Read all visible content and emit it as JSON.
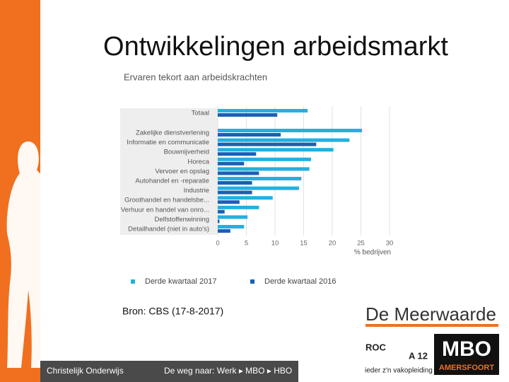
{
  "slide": {
    "title": "Ontwikkelingen arbeidsmarkt",
    "source": "Bron: CBS (17-8-2017)",
    "footer_left": "Christelijk Onderwijs",
    "footer_right": "De weg naar: Werk ▸ MBO ▸ HBO",
    "logo_meerwaarde": "De Meerwaarde",
    "logo_roc": "ROC",
    "logo_a12": "A 12",
    "logo_tagline": "ieder z'n vakopleiding",
    "logo_mbo": "MBO",
    "logo_city": "AMERSFOORT"
  },
  "chart_data": {
    "type": "hbar",
    "title": "Ervaren tekort aan arbeidskrachten",
    "x_label": "% bedrijven",
    "categories": [
      "Totaal",
      "Zakelijke dienstverlening",
      "Informatie en communicatie",
      "Bouwnijverheid",
      "Horeca",
      "Vervoer en opslag",
      "Autohandel en -reparatie",
      "Industrie",
      "Groothandel en handelsbe...",
      "Verhuur en handel van onro...",
      "Delfstoffenwinning",
      "Detailhandel (niet in auto's)"
    ],
    "series": [
      {
        "name": "Derde kwartaal 2017",
        "color": "#22b0e0",
        "values": [
          15.7,
          25.2,
          23,
          20.2,
          16.3,
          16,
          14.6,
          14.2,
          9.6,
          7.2,
          5.2,
          4.6
        ]
      },
      {
        "name": "Derde kwartaal 2016",
        "color": "#1b5fb5",
        "values": [
          10.4,
          11,
          17.2,
          6.7,
          4.6,
          7.2,
          6,
          6,
          3.8,
          1.2,
          0.3,
          2.2
        ]
      }
    ],
    "xlim": [
      0,
      30
    ],
    "xticks": [
      0,
      5,
      10,
      15,
      20,
      25,
      30
    ],
    "grid": true
  }
}
